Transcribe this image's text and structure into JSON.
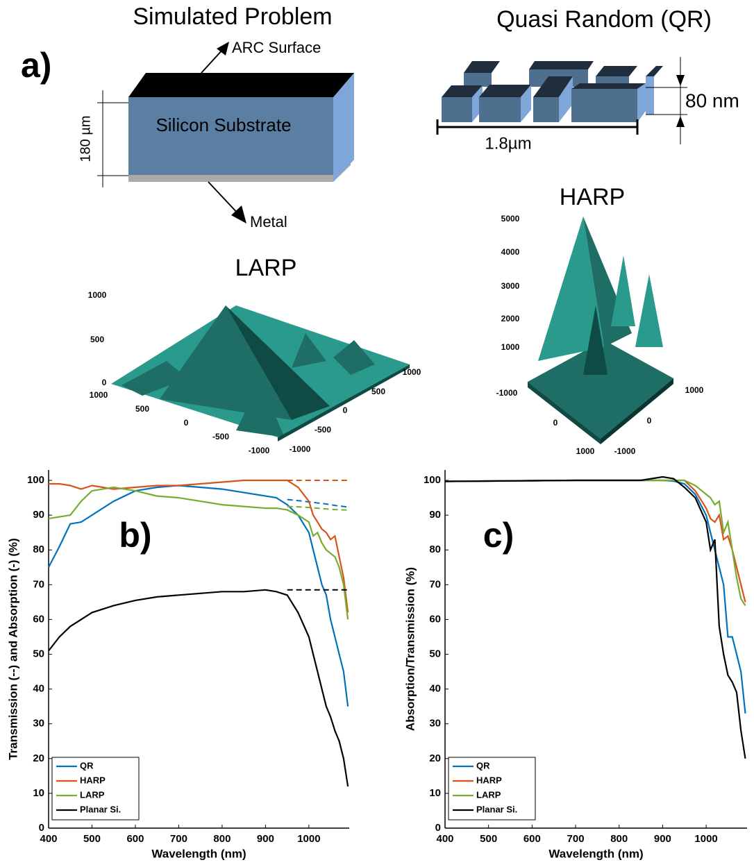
{
  "panel_a": {
    "label": "a)",
    "simulated": {
      "title": "Simulated Problem",
      "arc": "ARC Surface",
      "thickness": "180 µm",
      "substrate": "Silicon Substrate",
      "metal": "Metal"
    },
    "qr": {
      "title": "Quasi Random (QR)",
      "height": "80 nm",
      "period": "1.8µm"
    },
    "larp": {
      "title": "LARP",
      "z_ticks": [
        1000,
        500,
        0
      ],
      "x_ticks": [
        1000,
        500,
        0,
        -500,
        -1000
      ],
      "y_ticks": [
        -1000,
        -500,
        0,
        500,
        1000
      ]
    },
    "harp": {
      "title": "HARP",
      "z_ticks": [
        5000,
        4000,
        3000,
        2000,
        1000
      ],
      "x_ticks": [
        -1000,
        0,
        1000
      ],
      "y_ticks": [
        -1000,
        0,
        1000
      ]
    }
  },
  "chart_data": [
    {
      "type": "line",
      "panel_label": "b)",
      "xlabel": "Wavelength (nm)",
      "ylabel": "Transmission (--) and Absorption (-) (%)",
      "xlim": [
        400,
        1093
      ],
      "ylim": [
        0,
        103
      ],
      "xticks": [
        400,
        500,
        600,
        700,
        800,
        900,
        1000
      ],
      "yticks": [
        0,
        10,
        20,
        30,
        40,
        50,
        60,
        70,
        80,
        90,
        100
      ],
      "legend": "lower left",
      "x": [
        400,
        425,
        450,
        475,
        500,
        550,
        600,
        650,
        700,
        750,
        800,
        850,
        900,
        925,
        950,
        975,
        1000,
        1010,
        1020,
        1030,
        1040,
        1050,
        1060,
        1070,
        1080,
        1090
      ],
      "series": [
        {
          "name": "QR",
          "color": "#0072bd",
          "values": [
            75,
            81,
            87.5,
            88,
            90,
            94,
            97,
            98,
            98.5,
            98,
            97.5,
            96.5,
            95.5,
            95,
            93,
            90,
            85,
            80,
            75,
            70,
            67,
            60,
            55,
            50,
            45,
            35
          ],
          "transmission": [
            null,
            null,
            null,
            null,
            null,
            null,
            null,
            null,
            null,
            null,
            null,
            null,
            null,
            null,
            94.5,
            94.2,
            93.8,
            93.7,
            93.5,
            93.4,
            93.2,
            93,
            92.8,
            92.6,
            92.5,
            92.3
          ]
        },
        {
          "name": "HARP",
          "color": "#d95319",
          "values": [
            99,
            99,
            98.5,
            97.5,
            98.5,
            97.5,
            98,
            98.5,
            98.5,
            99,
            99.5,
            100,
            100,
            100,
            100,
            98,
            94,
            90,
            88,
            86,
            85,
            83,
            84,
            78,
            72,
            62
          ],
          "transmission": [
            null,
            null,
            null,
            null,
            null,
            null,
            null,
            null,
            null,
            null,
            null,
            null,
            null,
            null,
            100,
            100,
            100,
            100,
            100,
            100,
            100,
            100,
            100,
            100,
            100,
            100
          ]
        },
        {
          "name": "LARP",
          "color": "#77ac30",
          "values": [
            89,
            89.5,
            90,
            94,
            97,
            98,
            97,
            95.5,
            95,
            94,
            93,
            92.5,
            92,
            92,
            91.5,
            90,
            88,
            84,
            85,
            82,
            80,
            79,
            78,
            75,
            70,
            60
          ],
          "transmission": [
            null,
            null,
            null,
            null,
            null,
            null,
            null,
            null,
            null,
            null,
            null,
            null,
            null,
            null,
            92.5,
            92.4,
            92.2,
            92.1,
            92,
            91.9,
            91.8,
            91.7,
            91.6,
            91.6,
            91.5,
            91.5
          ]
        },
        {
          "name": "Planar Si.",
          "color": "#000000",
          "values": [
            51,
            55,
            58,
            60,
            62,
            64,
            65.5,
            66.5,
            67,
            67.5,
            68,
            68,
            68.5,
            68,
            67,
            62,
            55,
            50,
            45,
            40,
            35,
            32,
            28,
            25,
            20,
            12
          ],
          "transmission": [
            null,
            null,
            null,
            null,
            null,
            null,
            null,
            null,
            null,
            null,
            null,
            null,
            null,
            null,
            68.5,
            68.5,
            68.5,
            68.5,
            68.5,
            68.5,
            68.5,
            68.5,
            68.5,
            68.5,
            68.5,
            68.5
          ]
        }
      ]
    },
    {
      "type": "line",
      "panel_label": "c)",
      "xlabel": "Wavelength (nm)",
      "ylabel": "Absorption/Transmission (%)",
      "xlim": [
        400,
        1094
      ],
      "ylim": [
        0,
        103
      ],
      "xticks": [
        400,
        500,
        600,
        700,
        800,
        900,
        1000
      ],
      "yticks": [
        0,
        10,
        20,
        30,
        40,
        50,
        60,
        70,
        80,
        90,
        100
      ],
      "legend": "lower left",
      "x": [
        400,
        500,
        600,
        700,
        800,
        850,
        875,
        900,
        925,
        950,
        975,
        1000,
        1010,
        1020,
        1030,
        1040,
        1050,
        1060,
        1070,
        1080,
        1090
      ],
      "series": [
        {
          "name": "QR",
          "color": "#0072bd",
          "values": [
            99.7,
            99.8,
            99.9,
            100,
            100,
            100,
            100,
            100,
            99.8,
            99,
            96,
            90,
            85,
            80,
            75,
            70,
            55,
            55,
            50,
            45,
            33
          ]
        },
        {
          "name": "HARP",
          "color": "#d95319",
          "values": [
            99.7,
            99.8,
            99.9,
            100,
            100,
            100,
            100,
            100,
            100,
            100,
            97,
            92,
            89,
            88,
            90,
            83,
            84,
            80,
            75,
            70,
            65
          ]
        },
        {
          "name": "LARP",
          "color": "#77ac30",
          "values": [
            99.7,
            99.8,
            99.9,
            100,
            100,
            100,
            100,
            100,
            100,
            100,
            98.5,
            96,
            95,
            93,
            94,
            85,
            88,
            80,
            72,
            66,
            64
          ]
        },
        {
          "name": "Planar Si.",
          "color": "#000000",
          "values": [
            99.7,
            99.8,
            99.9,
            100,
            100,
            100,
            100.5,
            101,
            100.5,
            98,
            95,
            88,
            80,
            83,
            58,
            50,
            44,
            42,
            39,
            28,
            20
          ]
        }
      ]
    }
  ]
}
